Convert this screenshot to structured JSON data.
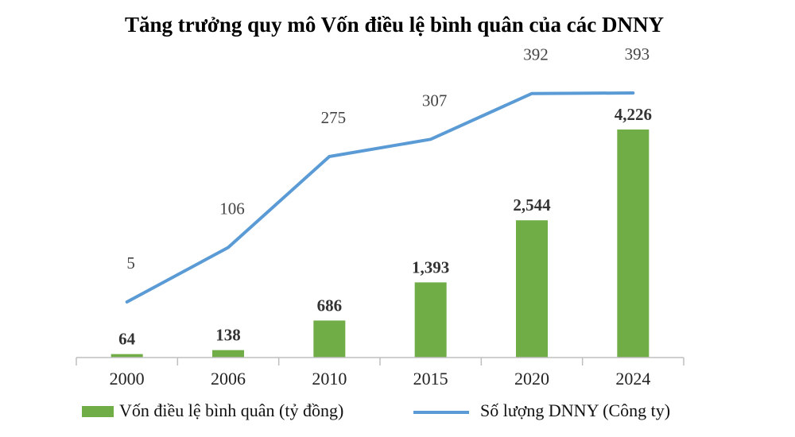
{
  "chart_data": {
    "type": "bar",
    "title": "Tăng trưởng quy mô Vốn điều lệ bình quân của các DNNY",
    "categories": [
      "2000",
      "2006",
      "2010",
      "2015",
      "2020",
      "2024"
    ],
    "series": [
      {
        "name": "Vốn điều lệ bình quân (tỷ đồng)",
        "type": "bar",
        "values": [
          64,
          138,
          686,
          1393,
          2544,
          4226
        ],
        "labels": [
          "64",
          "138",
          "686",
          "1,393",
          "2,544",
          "4,226"
        ],
        "color": "#70ad47"
      },
      {
        "name": "Số lượng DNNY (Công ty)",
        "type": "line",
        "values": [
          5,
          106,
          275,
          307,
          392,
          393
        ],
        "labels": [
          "5",
          "106",
          "275",
          "307",
          "392",
          "393"
        ],
        "color": "#5b9bd5"
      }
    ],
    "grid": false,
    "legend": "bottom"
  }
}
